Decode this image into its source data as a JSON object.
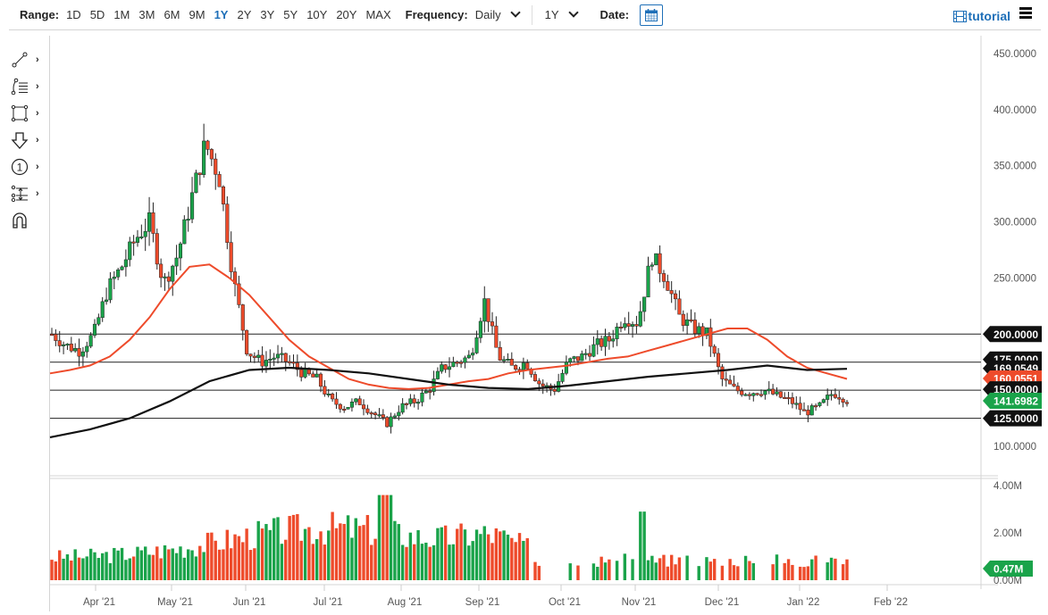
{
  "toolbar": {
    "range_label": "Range:",
    "ranges": [
      "1D",
      "5D",
      "1M",
      "3M",
      "6M",
      "9M",
      "1Y",
      "2Y",
      "3Y",
      "5Y",
      "10Y",
      "20Y",
      "MAX"
    ],
    "active_range": "1Y",
    "frequency_label": "Frequency:",
    "frequency_value": "Daily",
    "period_value": "1Y",
    "date_label": "Date:",
    "tutorial_label": "tutorial"
  },
  "drawing_tools": [
    {
      "name": "line-tool-icon",
      "has_submenu": true
    },
    {
      "name": "fibonacci-tool-icon",
      "has_submenu": true
    },
    {
      "name": "rectangle-tool-icon",
      "has_submenu": true
    },
    {
      "name": "arrow-down-tool-icon",
      "has_submenu": true
    },
    {
      "name": "number-marker-tool-icon",
      "has_submenu": true
    },
    {
      "name": "measure-tool-icon",
      "has_submenu": true
    },
    {
      "name": "magnet-icon",
      "has_submenu": false
    }
  ],
  "colors": {
    "up": "#1aa34a",
    "down": "#ee4b2b",
    "ma_fast": "#ee4b2b",
    "ma_slow": "#111111",
    "accent": "#1e6fb8"
  },
  "chart_data": {
    "type": "candlestick",
    "title": "",
    "xlabel": "",
    "ylabel": "",
    "ylim": [
      90,
      460
    ],
    "y_ticks": [
      "450.0000",
      "400.0000",
      "350.0000",
      "300.0000",
      "250.0000",
      "200.0000",
      "125.0000",
      "100.0000"
    ],
    "x_ticks": [
      "Apr '21",
      "May '21",
      "Jun '21",
      "Jul '21",
      "Aug '21",
      "Sep '21",
      "Oct '21",
      "Nov '21",
      "Dec '21",
      "Jan '22",
      "Feb '22"
    ],
    "horizontal_lines": [
      200,
      175,
      150,
      125
    ],
    "price_tags": [
      {
        "label": "200.0000",
        "value": 200,
        "color": "#111111"
      },
      {
        "label": "175.0000",
        "value": 175,
        "color": "#111111"
      },
      {
        "label": "169.0549",
        "value": 169.05,
        "color": "#111111"
      },
      {
        "label": "160.0551",
        "value": 160.06,
        "color": "#ee4b2b"
      },
      {
        "label": "150.0000",
        "value": 150,
        "color": "#111111"
      },
      {
        "label": "141.6982",
        "value": 141.7,
        "color": "#1aa34a"
      },
      {
        "label": "125.0000",
        "value": 125,
        "color": "#111111"
      }
    ],
    "series": [
      {
        "name": "Price (approx. weekly closes)",
        "values": [
          200,
          190,
          185,
          200,
          240,
          260,
          285,
          300,
          245,
          270,
          320,
          370,
          340,
          250,
          185,
          175,
          180,
          175,
          165,
          160,
          140,
          135,
          140,
          130,
          120,
          135,
          140,
          150,
          170,
          175,
          180,
          230,
          180,
          170,
          175,
          155,
          150,
          175,
          180,
          190,
          195,
          215,
          210,
          270,
          250,
          215,
          205,
          200,
          160,
          150,
          148,
          150,
          145,
          140,
          130,
          135,
          148,
          141.7
        ]
      },
      {
        "name": "MA fast (red)",
        "values": [
          165,
          168,
          172,
          180,
          195,
          215,
          240,
          260,
          262,
          250,
          235,
          215,
          195,
          180,
          170,
          160,
          155,
          152,
          151,
          152,
          155,
          158,
          160,
          165,
          168,
          170,
          172,
          175,
          178,
          180,
          185,
          190,
          195,
          200,
          205,
          205,
          195,
          180,
          170,
          165,
          160.06
        ]
      },
      {
        "name": "MA slow (black)",
        "values": [
          108,
          115,
          125,
          140,
          158,
          168,
          170,
          168,
          165,
          160,
          155,
          152,
          151,
          154,
          158,
          162,
          165,
          168,
          172,
          168,
          169.05
        ]
      }
    ],
    "volume": {
      "y_ticks": [
        "4.00M",
        "2.00M",
        "0.00M"
      ],
      "last_volume_label": "0.47M",
      "max": 4.2
    }
  }
}
